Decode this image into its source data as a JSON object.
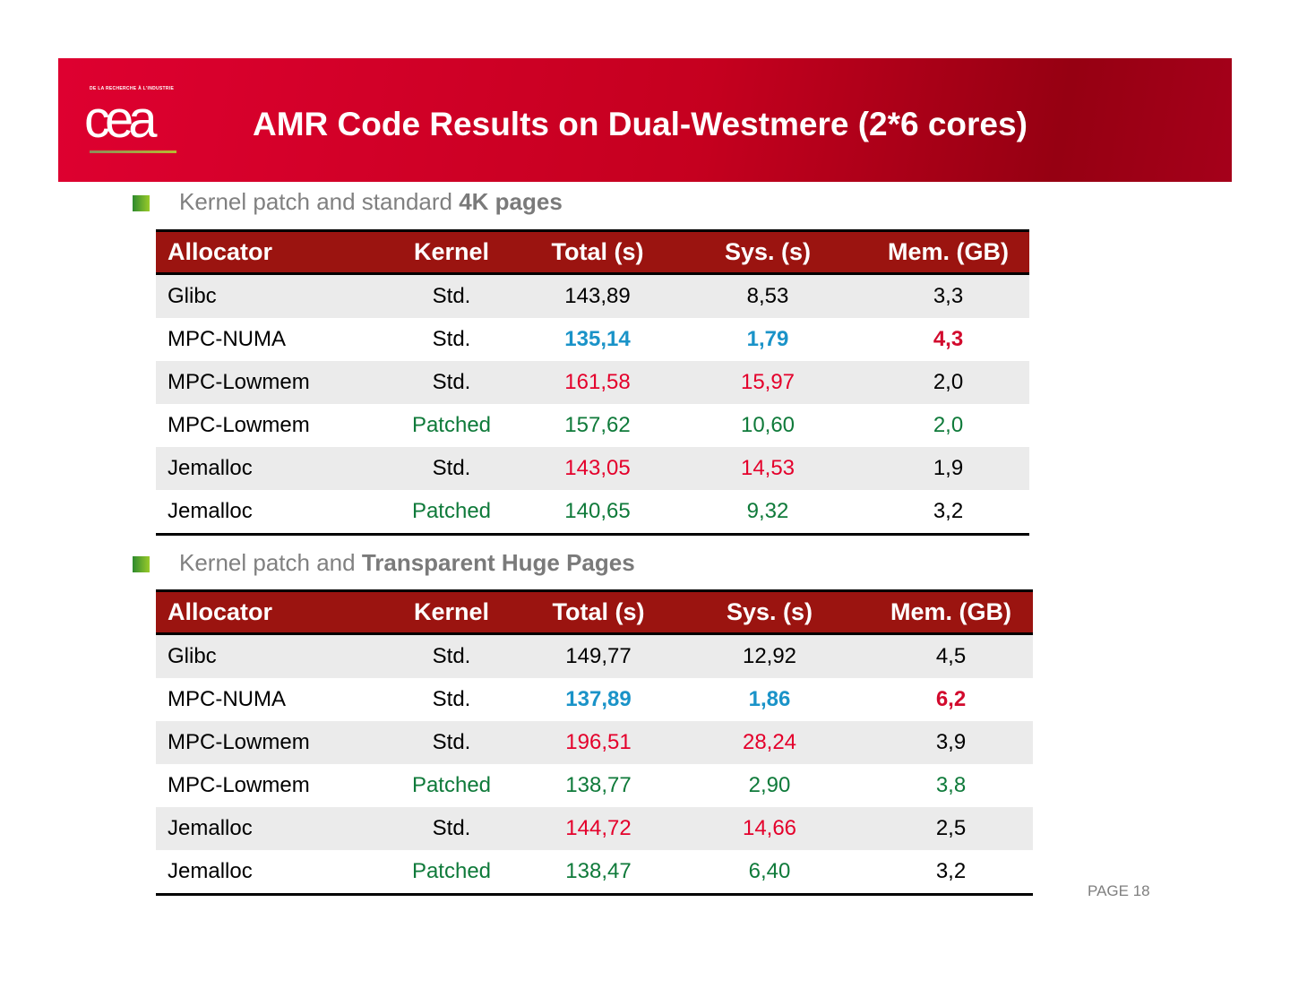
{
  "header": {
    "logo_caption": "DE LA RECHERCHE À L'INDUSTRIE",
    "logo": "cea",
    "title": "AMR Code Results on Dual-Westmere (2*6 cores)"
  },
  "sections": [
    {
      "bullet": {
        "text": "Kernel patch and standard ",
        "bold": "4K pages"
      },
      "table": {
        "columns": [
          "Allocator",
          "Kernel",
          "Total (s)",
          "Sys. (s)",
          "Mem. (GB)"
        ],
        "rows": [
          [
            "Glibc",
            "Std.",
            "143,89",
            "8,53",
            "3,3"
          ],
          [
            "MPC-NUMA",
            "Std.",
            "135,14",
            "1,79",
            "4,3"
          ],
          [
            "MPC-Lowmem",
            "Std.",
            "161,58",
            "15,97",
            "2,0"
          ],
          [
            "MPC-Lowmem",
            "Patched",
            "157,62",
            "10,60",
            "2,0"
          ],
          [
            "Jemalloc",
            "Std.",
            "143,05",
            "14,53",
            "1,9"
          ],
          [
            "Jemalloc",
            "Patched",
            "140,65",
            "9,32",
            "3,2"
          ]
        ]
      }
    },
    {
      "bullet": {
        "text": "Kernel patch and ",
        "bold": "Transparent Huge Pages"
      },
      "table": {
        "columns": [
          "Allocator",
          "Kernel",
          "Total (s)",
          "Sys. (s)",
          "Mem. (GB)"
        ],
        "rows": [
          [
            "Glibc",
            "Std.",
            "149,77",
            "12,92",
            "4,5"
          ],
          [
            "MPC-NUMA",
            "Std.",
            "137,89",
            "1,86",
            "6,2"
          ],
          [
            "MPC-Lowmem",
            "Std.",
            "196,51",
            "28,24",
            "3,9"
          ],
          [
            "MPC-Lowmem",
            "Patched",
            "138,77",
            "2,90",
            "3,8"
          ],
          [
            "Jemalloc",
            "Std.",
            "144,72",
            "14,66",
            "2,5"
          ],
          [
            "Jemalloc",
            "Patched",
            "138,47",
            "6,40",
            "3,2"
          ]
        ]
      }
    }
  ],
  "footer": {
    "page": "PAGE 18"
  }
}
